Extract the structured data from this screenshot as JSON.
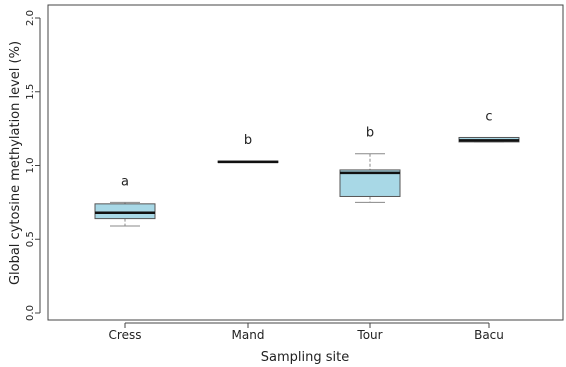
{
  "chart_data": {
    "type": "box",
    "xlabel": "Sampling site",
    "ylabel": "Global cytosine methylation level (%)",
    "ylim": [
      0,
      2.0
    ],
    "yticks": [
      "0.0",
      "0.5",
      "1.0",
      "1.5",
      "2.0"
    ],
    "categories": [
      "Cress",
      "Mand",
      "Tour",
      "Bacu"
    ],
    "box_color": "#a8d8e6",
    "boxes": [
      {
        "category": "Cress",
        "whisker_low": 0.59,
        "q1": 0.64,
        "median": 0.68,
        "q3": 0.74,
        "whisker_high": 0.75,
        "letter": "a"
      },
      {
        "category": "Mand",
        "whisker_low": 1.02,
        "q1": 1.02,
        "median": 1.025,
        "q3": 1.03,
        "whisker_high": 1.03,
        "letter": "b"
      },
      {
        "category": "Tour",
        "whisker_low": 0.75,
        "q1": 0.79,
        "median": 0.95,
        "q3": 0.97,
        "whisker_high": 1.08,
        "letter": "b"
      },
      {
        "category": "Bacu",
        "whisker_low": 1.16,
        "q1": 1.16,
        "median": 1.17,
        "q3": 1.19,
        "whisker_high": 1.19,
        "letter": "c"
      }
    ]
  }
}
